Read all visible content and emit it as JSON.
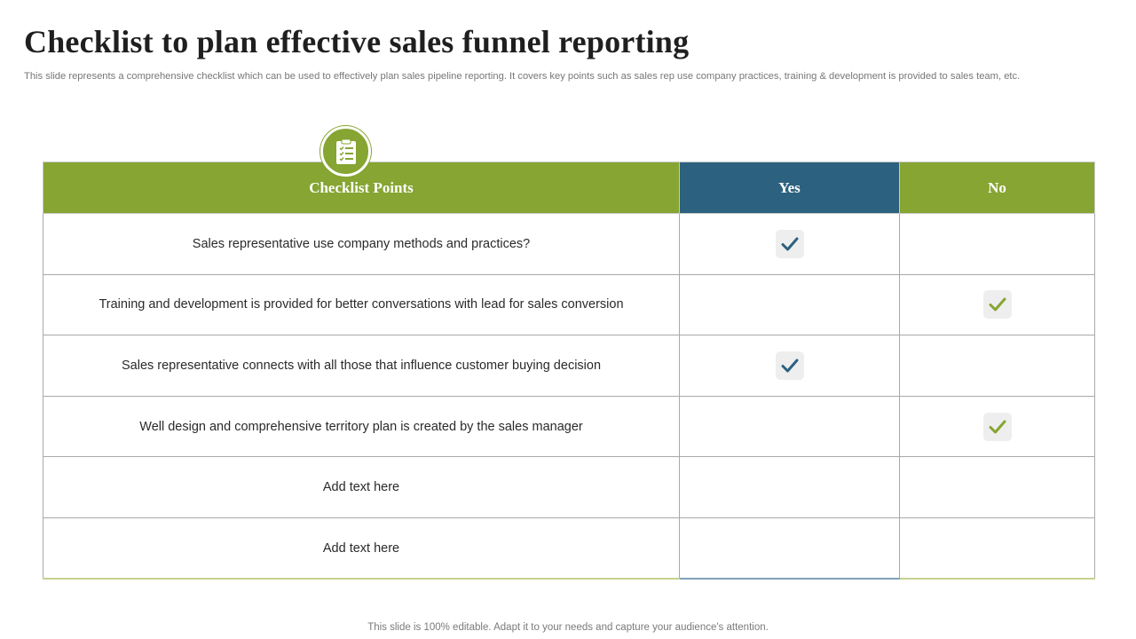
{
  "title": "Checklist  to plan effective sales funnel reporting",
  "subtitle": "This slide represents a comprehensive checklist which can be used to effectively  plan sales pipeline reporting. It covers key  points such as sales rep use company practices, training & development is provided to sales team, etc.",
  "badge_icon": "clipboard-checklist-icon",
  "table": {
    "headers": {
      "points": "Checklist Points",
      "yes": "Yes",
      "no": "No"
    },
    "header_colors": {
      "points": "#86a532",
      "yes": "#2c6180",
      "no": "#86a532"
    },
    "rows": [
      {
        "point": "Sales representative use company methods and practices?",
        "answer": "yes"
      },
      {
        "point": "Training and development is provided for better conversations with lead for sales conversion",
        "answer": "no"
      },
      {
        "point": "Sales representative connects with all those that influence customer buying decision",
        "answer": "yes"
      },
      {
        "point": "Well design and comprehensive territory plan is created by the sales manager",
        "answer": "no"
      },
      {
        "point": "Add text here",
        "answer": ""
      },
      {
        "point": "Add text here",
        "answer": ""
      }
    ]
  },
  "check_icon": "checkmark-icon",
  "footer": "This slide is 100% editable. Adapt it to your needs and capture your audience's attention."
}
